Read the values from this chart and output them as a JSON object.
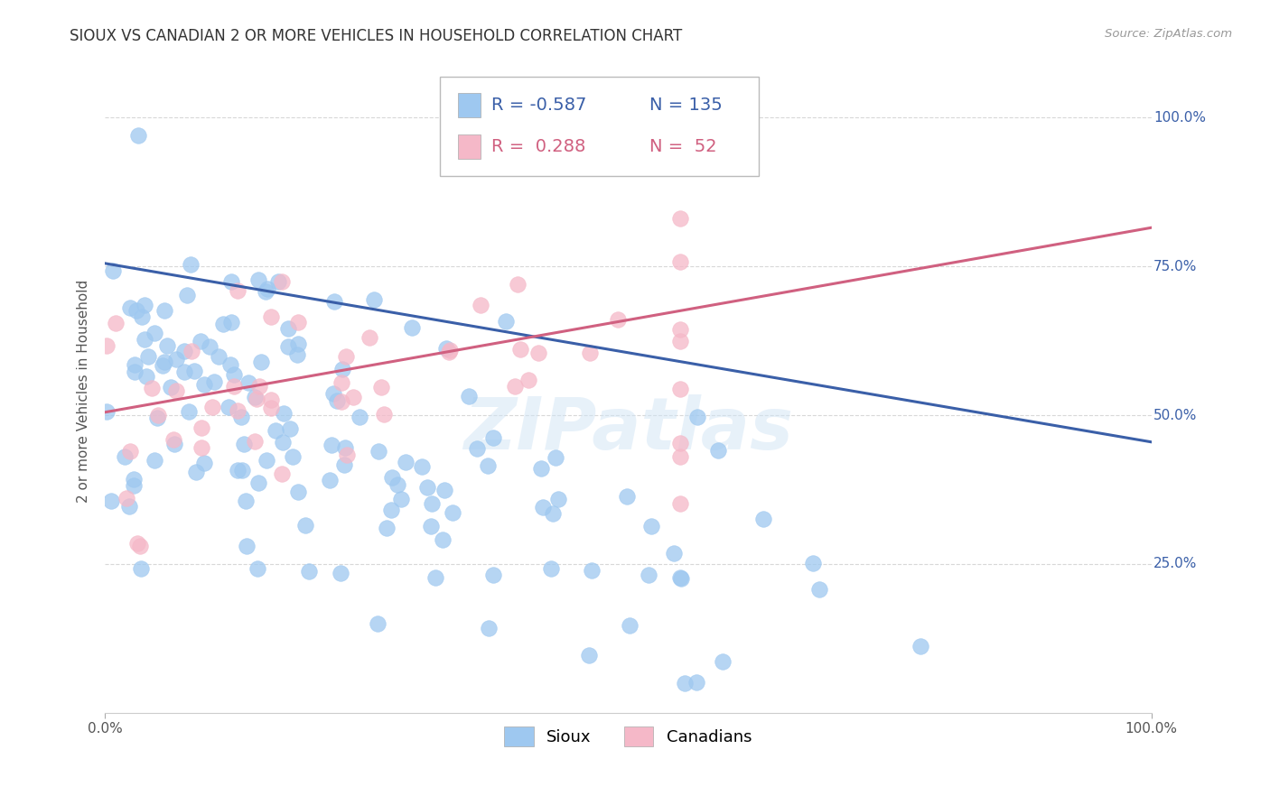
{
  "title": "SIOUX VS CANADIAN 2 OR MORE VEHICLES IN HOUSEHOLD CORRELATION CHART",
  "source": "Source: ZipAtlas.com",
  "ylabel": "2 or more Vehicles in Household",
  "watermark": "ZIPatlas",
  "sioux_r": -0.587,
  "sioux_n": 135,
  "canadian_r": 0.288,
  "canadian_n": 52,
  "xlim": [
    0.0,
    1.0
  ],
  "ylim": [
    0.0,
    1.08
  ],
  "xtick_positions": [
    0.0,
    1.0
  ],
  "xtick_labels": [
    "0.0%",
    "100.0%"
  ],
  "ytick_positions": [
    0.25,
    0.5,
    0.75,
    1.0
  ],
  "ytick_labels": [
    "25.0%",
    "50.0%",
    "75.0%",
    "100.0%"
  ],
  "sioux_color": "#9ec8f0",
  "canadian_color": "#f5b8c8",
  "sioux_line_color": "#3a5fa8",
  "canadian_line_color": "#d06080",
  "title_fontsize": 12,
  "legend_fontsize": 14,
  "background_color": "#ffffff",
  "grid_color": "#d8d8d8",
  "sioux_line_y0": 0.755,
  "sioux_line_y1": 0.455,
  "canadian_line_y0": 0.505,
  "canadian_line_y1": 0.815
}
